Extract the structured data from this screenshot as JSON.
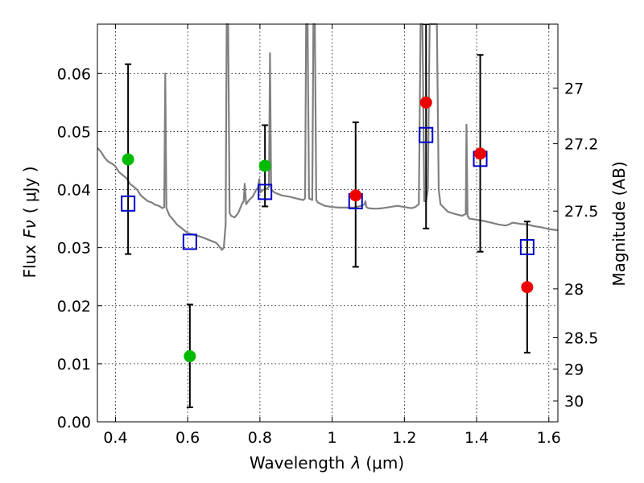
{
  "chart_data": {
    "type": "scatter",
    "xlabel": "Wavelength",
    "xlabel_symbol": "λ",
    "xlabel_unit": "(μm)",
    "ylabel": "Flux",
    "ylabel_symbol": "Fν",
    "ylabel_unit": "( μJy )",
    "y2label": "Magnitude (AB)",
    "xlim": [
      0.35,
      1.625
    ],
    "ylim": [
      0.0,
      0.0685
    ],
    "grid": true,
    "x_ticks": [
      0.4,
      0.6,
      0.8,
      1.0,
      1.2,
      1.4,
      1.6
    ],
    "x_tick_labels": [
      "0.4",
      "0.6",
      "0.8",
      "1",
      "1.2",
      "1.4",
      "1.6"
    ],
    "y_ticks": [
      0.0,
      0.01,
      0.02,
      0.03,
      0.04,
      0.05,
      0.06
    ],
    "y_tick_labels": [
      "0.00",
      "0.01",
      "0.02",
      "0.03",
      "0.04",
      "0.05",
      "0.06"
    ],
    "y2_ticks": [
      {
        "label": "27",
        "flux": 0.0575
      },
      {
        "label": "27.2",
        "flux": 0.0479
      },
      {
        "label": "27.5",
        "flux": 0.0363
      },
      {
        "label": "28",
        "flux": 0.0229
      },
      {
        "label": "28.5",
        "flux": 0.0145
      },
      {
        "label": "29",
        "flux": 0.0091
      },
      {
        "label": "30",
        "flux": 0.0036
      }
    ],
    "colors": {
      "template": "#808080",
      "model": "#0000cc",
      "obs_optical": "#00bb00",
      "obs_nir": "#ee0000",
      "errorbar": "#000000"
    },
    "model_points": [
      {
        "x": 0.435,
        "y": 0.0376
      },
      {
        "x": 0.606,
        "y": 0.031
      },
      {
        "x": 0.814,
        "y": 0.0396
      },
      {
        "x": 1.065,
        "y": 0.038
      },
      {
        "x": 1.26,
        "y": 0.0494
      },
      {
        "x": 1.41,
        "y": 0.0453
      },
      {
        "x": 1.54,
        "y": 0.0301
      }
    ],
    "observed_points": [
      {
        "x": 0.435,
        "y": 0.0452,
        "err_low": 0.0289,
        "err_high": 0.0616,
        "group": "optical"
      },
      {
        "x": 0.606,
        "y": 0.0113,
        "err_low": 0.0025,
        "err_high": 0.0202,
        "group": "optical"
      },
      {
        "x": 0.814,
        "y": 0.0441,
        "err_low": 0.0371,
        "err_high": 0.0511,
        "group": "optical"
      },
      {
        "x": 1.065,
        "y": 0.039,
        "err_low": 0.0267,
        "err_high": 0.0516,
        "group": "nir"
      },
      {
        "x": 1.26,
        "y": 0.055,
        "err_low": 0.0333,
        "err_high": 0.0685,
        "group": "nir"
      },
      {
        "x": 1.41,
        "y": 0.0462,
        "err_low": 0.0293,
        "err_high": 0.0632,
        "group": "nir"
      },
      {
        "x": 1.54,
        "y": 0.0232,
        "err_low": 0.0119,
        "err_high": 0.0345,
        "group": "nir"
      }
    ],
    "template_spectrum": [
      [
        0.35,
        0.0472
      ],
      [
        0.36,
        0.0465
      ],
      [
        0.37,
        0.0455
      ],
      [
        0.38,
        0.0448
      ],
      [
        0.39,
        0.0445
      ],
      [
        0.4,
        0.044
      ],
      [
        0.41,
        0.043
      ],
      [
        0.42,
        0.0425
      ],
      [
        0.43,
        0.042
      ],
      [
        0.44,
        0.041
      ],
      [
        0.45,
        0.0405
      ],
      [
        0.46,
        0.04
      ],
      [
        0.47,
        0.039
      ],
      [
        0.48,
        0.0385
      ],
      [
        0.49,
        0.038
      ],
      [
        0.5,
        0.0378
      ],
      [
        0.51,
        0.0374
      ],
      [
        0.52,
        0.0372
      ],
      [
        0.53,
        0.0368
      ],
      [
        0.535,
        0.037
      ],
      [
        0.538,
        0.06
      ],
      [
        0.541,
        0.0368
      ],
      [
        0.55,
        0.0355
      ],
      [
        0.56,
        0.0348
      ],
      [
        0.57,
        0.034
      ],
      [
        0.58,
        0.0335
      ],
      [
        0.59,
        0.033
      ],
      [
        0.6,
        0.0325
      ],
      [
        0.62,
        0.0322
      ],
      [
        0.64,
        0.0318
      ],
      [
        0.66,
        0.0313
      ],
      [
        0.68,
        0.0308
      ],
      [
        0.69,
        0.03
      ],
      [
        0.695,
        0.0296
      ],
      [
        0.7,
        0.03
      ],
      [
        0.705,
        0.034
      ],
      [
        0.708,
        0.0685
      ],
      [
        0.712,
        0.0685
      ],
      [
        0.716,
        0.036
      ],
      [
        0.72,
        0.0355
      ],
      [
        0.73,
        0.0352
      ],
      [
        0.74,
        0.036
      ],
      [
        0.75,
        0.0375
      ],
      [
        0.755,
        0.038
      ],
      [
        0.758,
        0.041
      ],
      [
        0.762,
        0.0375
      ],
      [
        0.77,
        0.0382
      ],
      [
        0.78,
        0.0388
      ],
      [
        0.79,
        0.04
      ],
      [
        0.795,
        0.0403
      ],
      [
        0.798,
        0.0418
      ],
      [
        0.801,
        0.0395
      ],
      [
        0.81,
        0.04
      ],
      [
        0.82,
        0.0402
      ],
      [
        0.825,
        0.0405
      ],
      [
        0.828,
        0.0635
      ],
      [
        0.831,
        0.04
      ],
      [
        0.84,
        0.0395
      ],
      [
        0.86,
        0.039
      ],
      [
        0.88,
        0.0388
      ],
      [
        0.9,
        0.0385
      ],
      [
        0.92,
        0.0382
      ],
      [
        0.925,
        0.0385
      ],
      [
        0.928,
        0.0685
      ],
      [
        0.932,
        0.0685
      ],
      [
        0.936,
        0.0385
      ],
      [
        0.945,
        0.0382
      ],
      [
        0.948,
        0.0685
      ],
      [
        0.952,
        0.0685
      ],
      [
        0.956,
        0.0382
      ],
      [
        0.96,
        0.0378
      ],
      [
        0.97,
        0.0375
      ],
      [
        0.98,
        0.0372
      ],
      [
        1.0,
        0.037
      ],
      [
        1.02,
        0.0369
      ],
      [
        1.04,
        0.0369
      ],
      [
        1.06,
        0.0369
      ],
      [
        1.08,
        0.0372
      ],
      [
        1.09,
        0.0375
      ],
      [
        1.092,
        0.038
      ],
      [
        1.095,
        0.037
      ],
      [
        1.1,
        0.0368
      ],
      [
        1.12,
        0.0367
      ],
      [
        1.14,
        0.0368
      ],
      [
        1.16,
        0.037
      ],
      [
        1.18,
        0.0372
      ],
      [
        1.2,
        0.037
      ],
      [
        1.22,
        0.0368
      ],
      [
        1.23,
        0.037
      ],
      [
        1.24,
        0.0375
      ],
      [
        1.245,
        0.0685
      ],
      [
        1.25,
        0.0685
      ],
      [
        1.255,
        0.038
      ],
      [
        1.26,
        0.038
      ],
      [
        1.265,
        0.04
      ],
      [
        1.27,
        0.0685
      ],
      [
        1.29,
        0.0685
      ],
      [
        1.295,
        0.04
      ],
      [
        1.3,
        0.0375
      ],
      [
        1.32,
        0.0362
      ],
      [
        1.34,
        0.0358
      ],
      [
        1.36,
        0.0355
      ],
      [
        1.37,
        0.0358
      ],
      [
        1.372,
        0.0512
      ],
      [
        1.375,
        0.0355
      ],
      [
        1.38,
        0.035
      ],
      [
        1.4,
        0.0348
      ],
      [
        1.42,
        0.0346
      ],
      [
        1.44,
        0.0343
      ],
      [
        1.46,
        0.034
      ],
      [
        1.48,
        0.0338
      ],
      [
        1.49,
        0.034
      ],
      [
        1.5,
        0.0343
      ],
      [
        1.52,
        0.0341
      ],
      [
        1.54,
        0.034
      ],
      [
        1.56,
        0.0337
      ],
      [
        1.58,
        0.0335
      ],
      [
        1.6,
        0.0332
      ],
      [
        1.625,
        0.033
      ]
    ]
  }
}
